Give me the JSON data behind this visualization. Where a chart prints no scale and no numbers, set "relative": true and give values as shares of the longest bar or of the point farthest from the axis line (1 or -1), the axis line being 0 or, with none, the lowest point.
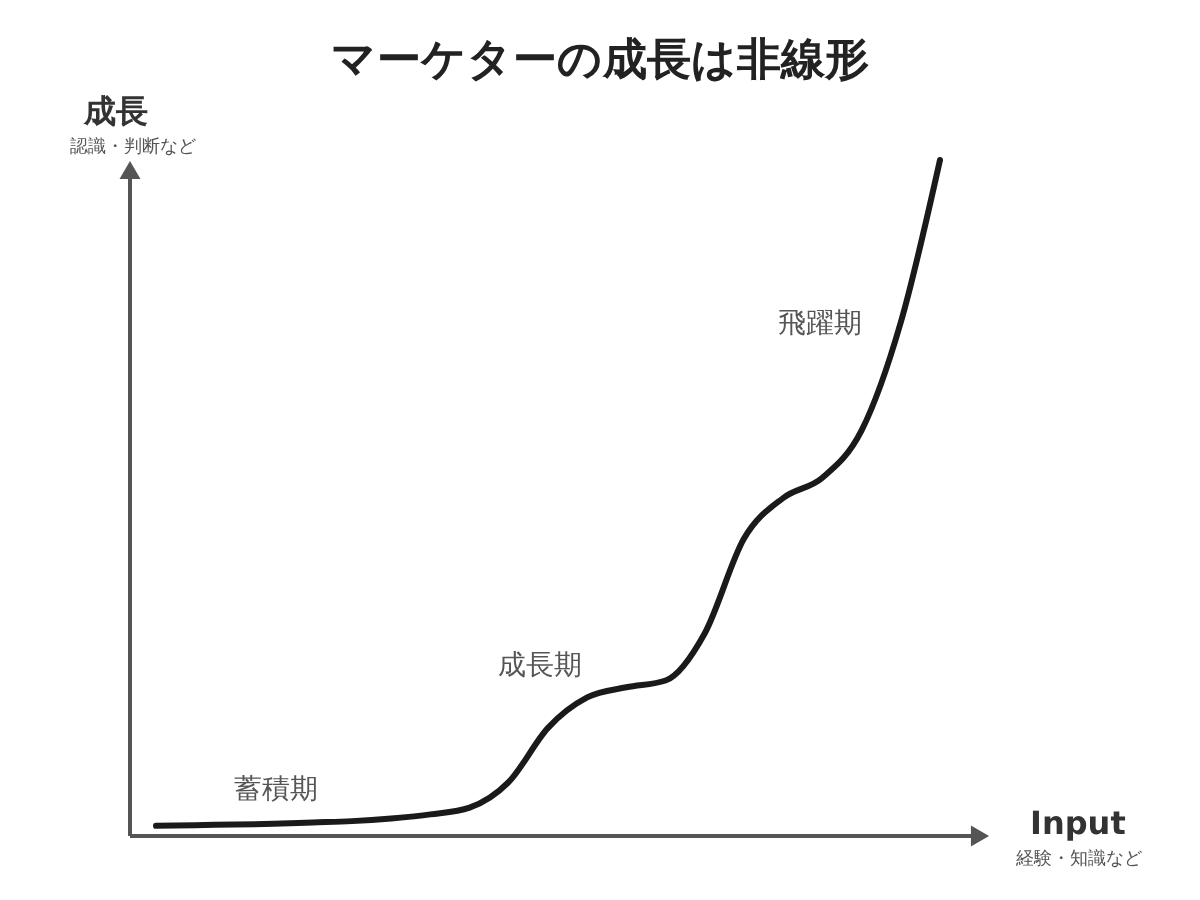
{
  "chart_data": {
    "type": "line",
    "title": "マーケターの成長は非線形",
    "xlabel": "Input",
    "ylabel": "成長",
    "categories": [
      null,
      null,
      null,
      null,
      null,
      null,
      null,
      null,
      null,
      null,
      null,
      null,
      null,
      null,
      null,
      null,
      null,
      null,
      null,
      null,
      null
    ],
    "values": [
      0.015,
      0.016,
      0.017,
      0.018,
      0.02,
      0.022,
      0.026,
      0.032,
      0.042,
      0.08,
      0.16,
      0.205,
      0.22,
      0.23,
      0.3,
      0.44,
      0.5,
      0.53,
      0.6,
      0.76,
      1.0
    ],
    "color": "#1a1a1a",
    "relative": true,
    "marker": "none",
    "line_style": "solid",
    "annotations": [
      "認識・判断など",
      "経験・知識など",
      "蓄積期",
      "成長期",
      "飛躍期"
    ]
  }
}
